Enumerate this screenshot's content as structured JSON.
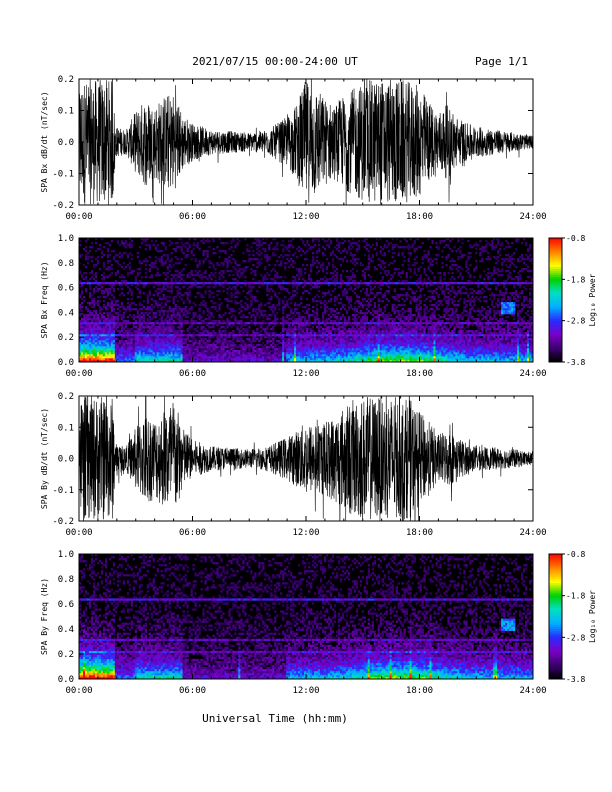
{
  "header": {
    "title": "2021/07/15  00:00-24:00 UT",
    "page": "Page 1/1"
  },
  "footer": {
    "xlabel": "Universal Time (hh:mm)"
  },
  "colorbar": {
    "label": "Log₁₀ Power",
    "ticks": [
      -0.8,
      -1.8,
      -2.8,
      -3.8
    ],
    "tick_labels": [
      "-0.8",
      "-1.8",
      "-2.8",
      "-3.8"
    ],
    "range": [
      -3.8,
      -0.8
    ],
    "palette": [
      "#000000",
      "#3a0070",
      "#7a00c8",
      "#2a2aff",
      "#00b0ff",
      "#00e0c0",
      "#00d000",
      "#ffff00",
      "#ff8000",
      "#ff0000"
    ]
  },
  "chart_data": [
    {
      "type": "line",
      "ylabel": "SPA Bx dB/dt (nT/sec)",
      "xlim": [
        "00:00",
        "24:00"
      ],
      "ylim": [
        -0.2,
        0.2
      ],
      "xticks": [
        "00:00",
        "06:00",
        "12:00",
        "18:00",
        "24:00"
      ],
      "yticks": [
        "-0.2",
        "-0.1",
        "0.0",
        "0.1",
        "0.2"
      ],
      "envelope_hours": [
        0,
        0.5,
        1.0,
        1.8,
        1.9,
        2.5,
        3.0,
        3.5,
        4.0,
        4.5,
        5.0,
        5.5,
        6.0,
        7.0,
        8.0,
        9.0,
        10.0,
        11.0,
        11.5,
        12.0,
        12.5,
        13.0,
        13.5,
        14.0,
        14.5,
        15.0,
        15.5,
        16.0,
        16.5,
        17.0,
        17.5,
        18.0,
        18.5,
        19.0,
        19.5,
        20.0,
        20.5,
        21.0,
        22.0,
        23.0,
        24.0
      ],
      "envelope_amplitude": [
        0.2,
        0.2,
        0.2,
        0.2,
        0.05,
        0.04,
        0.1,
        0.14,
        0.12,
        0.15,
        0.16,
        0.09,
        0.06,
        0.04,
        0.035,
        0.03,
        0.04,
        0.08,
        0.12,
        0.2,
        0.18,
        0.14,
        0.12,
        0.15,
        0.17,
        0.19,
        0.2,
        0.2,
        0.2,
        0.2,
        0.19,
        0.18,
        0.13,
        0.1,
        0.12,
        0.08,
        0.06,
        0.05,
        0.04,
        0.03,
        0.02
      ]
    },
    {
      "type": "heatmap",
      "ylabel": "SPA Bx Freq (Hz)",
      "xlim": [
        "00:00",
        "24:00"
      ],
      "ylim": [
        0.0,
        1.0
      ],
      "xticks": [
        "00:00",
        "06:00",
        "12:00",
        "18:00",
        "24:00"
      ],
      "yticks": [
        "0.0",
        "0.2",
        "0.4",
        "0.6",
        "0.8",
        "1.0"
      ],
      "value_range": [
        -3.8,
        -0.8
      ]
    },
    {
      "type": "line",
      "ylabel": "SPA By dB/dt (nT/sec)",
      "xlim": [
        "00:00",
        "24:00"
      ],
      "ylim": [
        -0.2,
        0.2
      ],
      "xticks": [
        "00:00",
        "06:00",
        "12:00",
        "18:00",
        "24:00"
      ],
      "yticks": [
        "-0.2",
        "-0.1",
        "0.0",
        "0.1",
        "0.2"
      ],
      "envelope_hours": [
        0,
        0.5,
        1.0,
        1.8,
        1.9,
        2.5,
        3.0,
        3.5,
        4.0,
        4.5,
        5.0,
        5.5,
        6.0,
        7.0,
        8.0,
        9.0,
        10.0,
        11.0,
        11.5,
        12.0,
        12.5,
        13.0,
        13.5,
        14.0,
        14.5,
        15.0,
        15.5,
        16.0,
        16.5,
        17.0,
        17.5,
        18.0,
        18.5,
        19.0,
        19.5,
        20.0,
        20.5,
        21.0,
        22.0,
        23.0,
        24.0
      ],
      "envelope_amplitude": [
        0.2,
        0.2,
        0.2,
        0.2,
        0.05,
        0.04,
        0.1,
        0.15,
        0.13,
        0.16,
        0.2,
        0.1,
        0.06,
        0.04,
        0.035,
        0.03,
        0.04,
        0.07,
        0.09,
        0.12,
        0.11,
        0.12,
        0.14,
        0.17,
        0.19,
        0.2,
        0.2,
        0.2,
        0.2,
        0.2,
        0.19,
        0.15,
        0.12,
        0.08,
        0.09,
        0.07,
        0.05,
        0.04,
        0.035,
        0.03,
        0.02
      ]
    },
    {
      "type": "heatmap",
      "ylabel": "SPA By Freq (Hz)",
      "xlim": [
        "00:00",
        "24:00"
      ],
      "ylim": [
        0.0,
        1.0
      ],
      "xticks": [
        "00:00",
        "06:00",
        "12:00",
        "18:00",
        "24:00"
      ],
      "yticks": [
        "0.0",
        "0.2",
        "0.4",
        "0.6",
        "0.8",
        "1.0"
      ],
      "value_range": [
        -3.8,
        -0.8
      ]
    }
  ]
}
